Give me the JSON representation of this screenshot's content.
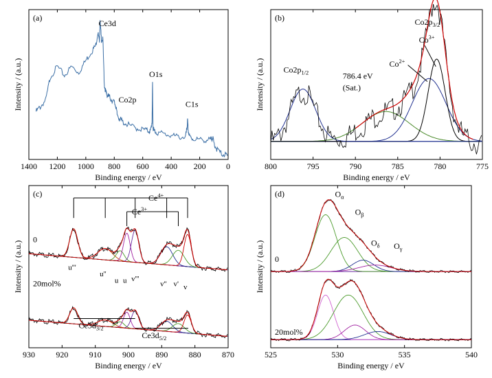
{
  "chart_data": [
    {
      "panel_label": "(a)",
      "type": "line",
      "xlabel": "Binding energy / eV",
      "ylabel": "Intensity / (a.u.)",
      "xlim": [
        1400,
        0
      ],
      "xticks": [
        "1400",
        "1200",
        "1000",
        "800",
        "600",
        "400",
        "200",
        "0"
      ],
      "peak_labels": [
        "Ce3d",
        "Co2p",
        "O1s",
        "C1s"
      ],
      "series": [
        {
          "color": "#3a6ea5",
          "x": [
            1350,
            1320,
            1280,
            1250,
            1200,
            1150,
            1100,
            1050,
            1000,
            960,
            930,
            915,
            905,
            900,
            890,
            880,
            870,
            860,
            850,
            840,
            820,
            800,
            790,
            780,
            760,
            740,
            700,
            650,
            600,
            560,
            545,
            535,
            531,
            528,
            520,
            500,
            450,
            400,
            350,
            300,
            290,
            285,
            280,
            270,
            250,
            200,
            150,
            120,
            110,
            100,
            80,
            50,
            20,
            5
          ],
          "y": [
            0.32,
            0.35,
            0.4,
            0.55,
            0.62,
            0.56,
            0.62,
            0.58,
            0.66,
            0.72,
            0.76,
            0.85,
            0.78,
            0.92,
            0.8,
            0.8,
            0.5,
            0.45,
            0.43,
            0.42,
            0.4,
            0.38,
            0.36,
            0.3,
            0.27,
            0.25,
            0.23,
            0.21,
            0.2,
            0.19,
            0.19,
            0.25,
            0.5,
            0.22,
            0.19,
            0.18,
            0.17,
            0.16,
            0.15,
            0.15,
            0.2,
            0.26,
            0.19,
            0.15,
            0.14,
            0.13,
            0.13,
            0.13,
            0.15,
            0.11,
            0.07,
            0.04,
            0.03,
            0.03
          ]
        }
      ]
    },
    {
      "panel_label": "(b)",
      "type": "line",
      "xlabel": "Binding energy / eV",
      "ylabel": "Intensity / (a.u.)",
      "xlim": [
        800,
        775
      ],
      "xticks": [
        "800",
        "795",
        "790",
        "785",
        "780",
        "775"
      ],
      "peak_labels": {
        "co2p12": "Co2p",
        "co2p12_sub": "1/2",
        "co2p32": "Co2p",
        "co2p32_sub": "3/2",
        "co3": "Co",
        "co3_sup": "3+",
        "co2": "Co",
        "co2_sup": "2+",
        "sat_ev": "786.4 eV",
        "sat": "(Sat.)"
      },
      "components": [
        {
          "name": "",
          "color": "#4a8a2a",
          "center": 786.4,
          "height": 0.2,
          "width": 2.8
        },
        {
          "name": "",
          "color": "#1f2f8f",
          "center": 781.3,
          "height": 0.42,
          "width": 2.0
        },
        {
          "name": "",
          "color": "#000000",
          "center": 780.4,
          "height": 0.55,
          "width": 1.0
        },
        {
          "name": "",
          "color": "#1f2f8f",
          "center": 796.2,
          "height": 0.35,
          "width": 1.5
        }
      ],
      "envelope_color": "#cc0000",
      "raw_color": "#000000",
      "baseline": 0.12
    },
    {
      "panel_label": "(c)",
      "type": "line",
      "xlabel": "Binding energy / eV",
      "ylabel": "Intensity / (a.u.)",
      "xlim": [
        930,
        870
      ],
      "xticks": [
        "930",
        "920",
        "910",
        "900",
        "890",
        "880",
        "870"
      ],
      "sample_labels": [
        "0",
        "20mol%"
      ],
      "ce4_label": "Ce",
      "ce4_sup": "4+",
      "ce3_label": "Ce",
      "ce3_sup": "3+",
      "peak_letters": [
        "u'''",
        "u''",
        "u",
        "u",
        "v'''",
        "v''",
        "v'",
        "v"
      ],
      "region_labels": {
        "ce3d32": "Ce3d",
        "ce3d32_sub": "3/2",
        "ce3d52": "Ce3d",
        "ce3d52_sub": "5/2"
      },
      "peaks": [
        {
          "center": 916.5,
          "height": 0.55,
          "width": 1.2,
          "color": "#8a8a00"
        },
        {
          "center": 907.0,
          "height": 0.22,
          "width": 2.2,
          "color": "#c05000"
        },
        {
          "center": 902.5,
          "height": 0.2,
          "width": 1.2,
          "color": "#4a9a2a"
        },
        {
          "center": 900.5,
          "height": 0.55,
          "width": 1.0,
          "color": "#a020a0"
        },
        {
          "center": 898.0,
          "height": 0.62,
          "width": 1.1,
          "color": "#6a2aa0"
        },
        {
          "center": 888.5,
          "height": 0.35,
          "width": 1.8,
          "color": "#1f2f8f"
        },
        {
          "center": 885.0,
          "height": 0.3,
          "width": 1.8,
          "color": "#4a9a2a"
        },
        {
          "center": 882.2,
          "height": 0.62,
          "width": 1.1,
          "color": "#cc0000"
        }
      ]
    },
    {
      "panel_label": "(d)",
      "type": "line",
      "xlabel": "Binding energy / eV",
      "ylabel": "Intensity / (a.u.)",
      "xlim": [
        525,
        540
      ],
      "xticks": [
        "525",
        "530",
        "535",
        "540"
      ],
      "sample_labels": [
        "0",
        "20mol%"
      ],
      "component_labels": [
        {
          "text": "O",
          "sub": "α"
        },
        {
          "text": "O",
          "sub": "β"
        },
        {
          "text": "O",
          "sub": "δ"
        },
        {
          "text": "O",
          "sub": "γ"
        }
      ],
      "components_top": [
        {
          "center": 529.1,
          "height": 0.7,
          "width": 0.8,
          "color": "#4a9a2a"
        },
        {
          "center": 530.5,
          "height": 0.42,
          "width": 1.0,
          "color": "#4a9a2a"
        },
        {
          "center": 531.9,
          "height": 0.14,
          "width": 0.8,
          "color": "#1f2f8f"
        },
        {
          "center": 532.8,
          "height": 0.08,
          "width": 1.2,
          "color": "#a020a0"
        }
      ],
      "components_bottom": [
        {
          "center": 529.1,
          "height": 0.55,
          "width": 0.6,
          "color": "#d060d0"
        },
        {
          "center": 530.8,
          "height": 0.55,
          "width": 1.1,
          "color": "#4a9a2a"
        },
        {
          "center": 531.3,
          "height": 0.18,
          "width": 0.8,
          "color": "#a020a0"
        },
        {
          "center": 533.0,
          "height": 0.1,
          "width": 1.0,
          "color": "#1f2f8f"
        }
      ]
    }
  ]
}
